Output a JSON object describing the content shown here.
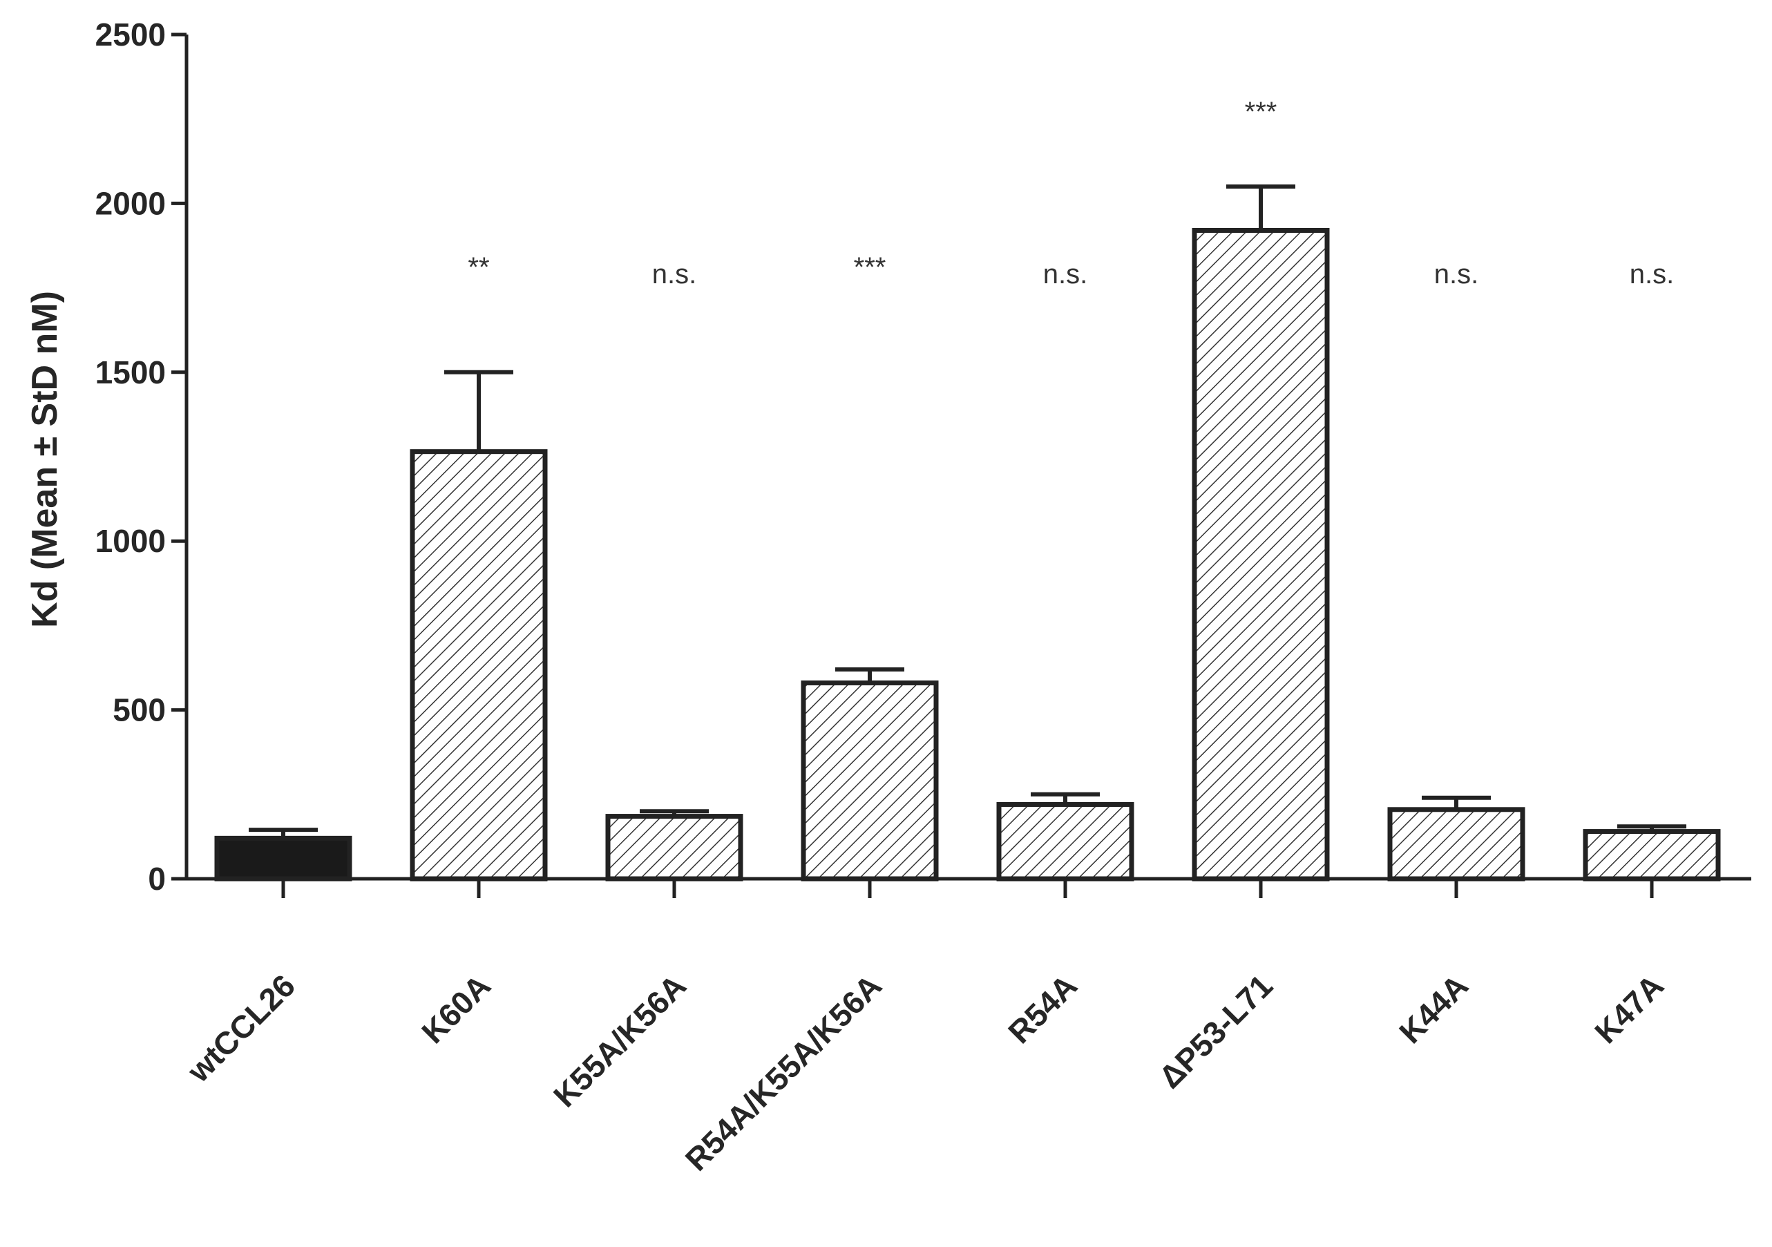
{
  "chart_data": {
    "type": "bar",
    "title": "",
    "xlabel": "",
    "ylabel": "Kd (Mean ± StD nM)",
    "ylim": [
      0,
      2500
    ],
    "yticks": [
      0,
      500,
      1000,
      1500,
      2000,
      2500
    ],
    "grid": false,
    "legend": "none",
    "categories": [
      "wtCCL26",
      "K60A",
      "K55A/K56A",
      "R54A/K55A/K56A",
      "R54A",
      "ΔP53-L71",
      "K44A",
      "K47A"
    ],
    "series": [
      {
        "values": [
          120,
          1265,
          185,
          580,
          220,
          1920,
          205,
          140
        ],
        "errors": [
          25,
          235,
          15,
          40,
          30,
          130,
          35,
          15
        ]
      }
    ],
    "annotations": [
      "",
      "**",
      "n.s.",
      "***",
      "n.s.",
      "***",
      "n.s.",
      "n.s."
    ],
    "colors": {
      "first_bar_fill": "#1a1a1a",
      "hatch_line": "#333333",
      "bar_edge": "#222222",
      "axis": "#222222"
    }
  }
}
